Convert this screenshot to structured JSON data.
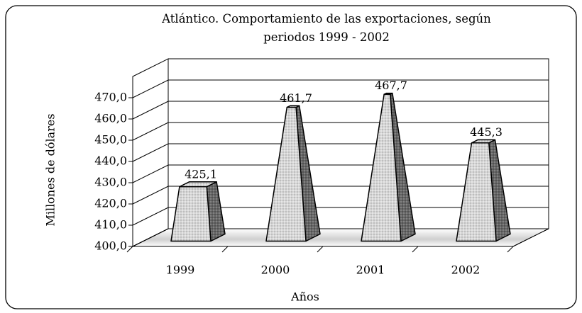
{
  "chart_data": {
    "type": "pyramid",
    "title": "Atlántico. Comportamiento de las exportaciones, según periodos 1999 - 2002",
    "x_label": "Años",
    "y_label": "Millones de dólares",
    "categories": [
      "1999",
      "2000",
      "2001",
      "2002"
    ],
    "values": [
      425.1,
      461.7,
      467.7,
      445.3
    ],
    "value_labels": [
      "425,1",
      "461,7",
      "467,7",
      "445,3"
    ],
    "color": "#d6d6d6",
    "ylim": [
      400,
      480
    ],
    "yticks": [
      {
        "value": 400,
        "label": "400,0"
      },
      {
        "value": 410,
        "label": "410,0"
      },
      {
        "value": 420,
        "label": "420,0"
      },
      {
        "value": 430,
        "label": "430,0"
      },
      {
        "value": 440,
        "label": "440,0"
      },
      {
        "value": 450,
        "label": "450,0"
      },
      {
        "value": 460,
        "label": "460,0"
      },
      {
        "value": 470,
        "label": "470,0"
      }
    ],
    "grid": true
  }
}
